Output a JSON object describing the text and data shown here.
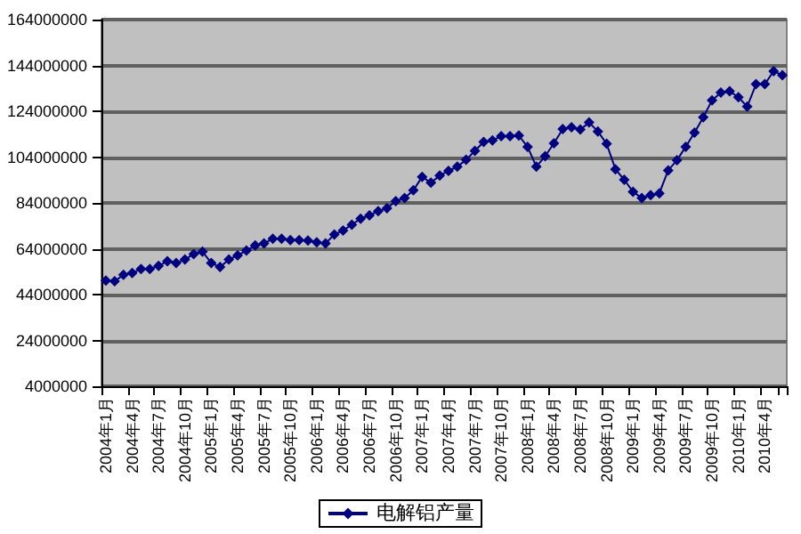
{
  "chart_data": {
    "type": "line",
    "categories": [
      "2004年1月",
      null,
      null,
      "2004年4月",
      null,
      null,
      "2004年7月",
      null,
      null,
      "2004年10月",
      null,
      null,
      "2005年1月",
      null,
      null,
      "2005年4月",
      null,
      null,
      "2005年7月",
      null,
      null,
      "2005年10月",
      null,
      null,
      "2006年1月",
      null,
      null,
      "2006年4月",
      null,
      null,
      "2006年7月",
      null,
      null,
      "2006年10月",
      null,
      null,
      "2007年1月",
      null,
      null,
      "2007年4月",
      null,
      null,
      "2007年7月",
      null,
      null,
      "2007年10月",
      null,
      null,
      "2008年1月",
      null,
      null,
      "2008年4月",
      null,
      null,
      "2008年7月",
      null,
      null,
      "2008年10月",
      null,
      null,
      "2009年1月",
      null,
      null,
      "2009年4月",
      null,
      null,
      "2009年7月",
      null,
      null,
      "2009年10月",
      null,
      null,
      "2010年1月",
      null,
      null,
      "2010年4月",
      null,
      null
    ],
    "series": [
      {
        "name": "电解铝产量",
        "color": "#000080",
        "values": [
          50100000,
          49800000,
          52600000,
          53400000,
          55200000,
          55200000,
          56500000,
          58600000,
          57800000,
          59300000,
          61700000,
          62700000,
          57800000,
          56000000,
          59300000,
          61100000,
          63200000,
          65500000,
          66300000,
          68400000,
          68400000,
          67800000,
          67800000,
          67600000,
          66800000,
          66300000,
          70200000,
          72000000,
          74500000,
          77100000,
          78600000,
          80400000,
          81700000,
          84800000,
          86100000,
          89500000,
          95400000,
          92800000,
          95900000,
          98000000,
          99800000,
          102800000,
          106700000,
          110600000,
          111300000,
          113100000,
          113100000,
          113400000,
          108500000,
          99800000,
          104400000,
          110000000,
          116200000,
          117000000,
          116000000,
          119100000,
          115200000,
          109800000,
          98700000,
          94100000,
          88900000,
          86100000,
          87400000,
          88200000,
          98200000,
          102600000,
          108500000,
          114700000,
          121400000,
          128800000,
          132200000,
          132700000,
          130100000,
          126000000,
          135800000,
          135800000,
          141500000,
          139700000
        ]
      }
    ],
    "ylim": [
      4000000,
      164000000
    ],
    "yticks": [
      4000000,
      24000000,
      44000000,
      64000000,
      84000000,
      104000000,
      124000000,
      144000000,
      164000000
    ],
    "grid": "y",
    "legend": "bottom",
    "marker": "diamond",
    "line_style": "solid"
  }
}
